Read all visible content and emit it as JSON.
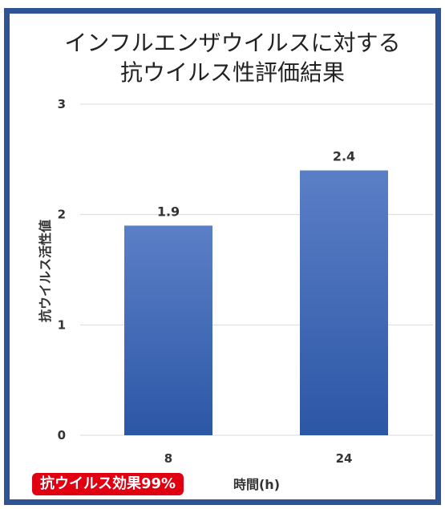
{
  "chart_data": {
    "type": "bar",
    "title_line1": "インフルエンザウイルスに対する",
    "title_line2": "抗ウイルス性評価結果",
    "xlabel": "時間(h)",
    "ylabel": "抗ウイルス活性値",
    "categories": [
      "8",
      "24"
    ],
    "values": [
      1.9,
      2.4
    ],
    "data_labels": [
      "1.9",
      "2.4"
    ],
    "ylim": [
      0,
      3
    ],
    "yticks": [
      0,
      1,
      2,
      3
    ],
    "grid": true,
    "bar_color_top": "#5b7fc7",
    "bar_color_bottom": "#2c57a5",
    "frame_color": "#2f5496"
  },
  "badge": {
    "text": "抗ウイルス効果99%",
    "color": "#e00012"
  }
}
